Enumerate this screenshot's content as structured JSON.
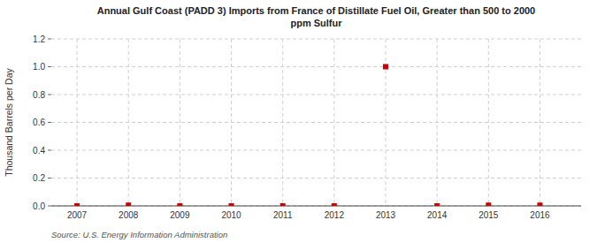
{
  "chart_data": {
    "type": "scatter",
    "title": "Annual Gulf Coast (PADD 3) Imports from France of Distillate Fuel Oil, Greater than 500 to 2000\nppm Sulfur",
    "ylabel": "Thousand Barrels per Day",
    "annotations": [
      "Source: U.S. Energy Information Administration"
    ],
    "x": [
      2007,
      2008,
      2009,
      2010,
      2011,
      2012,
      2013,
      2014,
      2015,
      2016
    ],
    "values": [
      0,
      0.005,
      0,
      0,
      0,
      0,
      1.0,
      0,
      0.005,
      0.005
    ],
    "color": "#cc0000",
    "marker": "square",
    "grid": true,
    "xlim": [
      2006.5,
      2016.8
    ],
    "ylim": [
      0.0,
      1.2
    ],
    "xticks": [
      2007,
      2008,
      2009,
      2010,
      2011,
      2012,
      2013,
      2014,
      2015,
      2016
    ],
    "yticks": [
      {
        "value": 0.0,
        "label": "0.0"
      },
      0.2,
      0.4,
      0.6,
      0.8,
      {
        "value": 1.0,
        "label": "1.0"
      },
      1.2
    ]
  }
}
